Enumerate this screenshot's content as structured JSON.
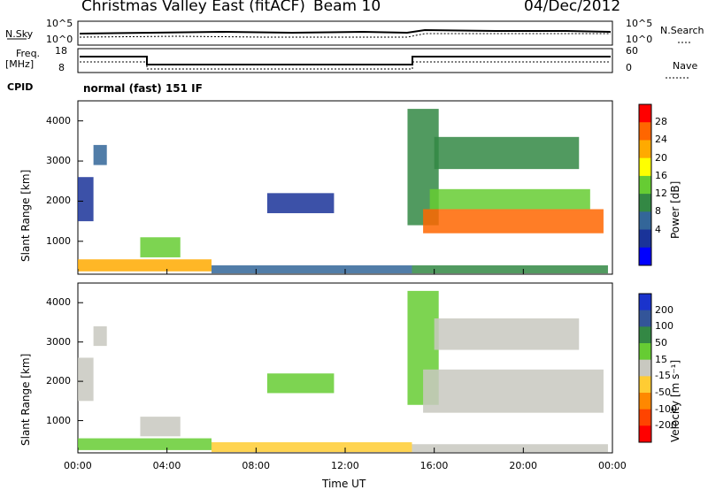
{
  "header": {
    "station": "Christmas Valley East (fitACF)",
    "beam": "Beam 10",
    "date": "04/Dec/2012"
  },
  "top_panels": {
    "nsky_label": "N.Sky",
    "nsearch_label": "N.Search",
    "noise_ticks_left": [
      "10^5",
      "10^0"
    ],
    "noise_ticks_right": [
      "10^5",
      "10^0"
    ],
    "freq_label_line1": "Freq.",
    "freq_label_line2": "[MHz]",
    "freq_ticks": [
      "18",
      "8"
    ],
    "nave_label": "Nave",
    "nave_ticks": [
      "60",
      "0"
    ],
    "cpid_label": "CPID",
    "cpid_text": "normal (fast) 151 IF"
  },
  "axes": {
    "y_label": "Slant Range [km]",
    "y_ticks": [
      "4000",
      "3000",
      "2000",
      "1000"
    ],
    "x_label": "Time UT",
    "x_ticks": [
      "00:00",
      "04:00",
      "08:00",
      "12:00",
      "16:00",
      "20:00",
      "00:00"
    ]
  },
  "power_scale": {
    "label": "Power [dB]",
    "ticks": [
      "28",
      "24",
      "20",
      "16",
      "12",
      "8",
      "4"
    ],
    "colors": [
      "#ff0000",
      "#ff6600",
      "#ffaa00",
      "#ffff00",
      "#66cc33",
      "#338844",
      "#336699",
      "#1a3399",
      "#0000ff"
    ]
  },
  "velocity_scale": {
    "label": "Velocity [m s⁻¹]",
    "ticks": [
      "200",
      "100",
      "50",
      "15",
      "-15",
      "-50",
      "-100",
      "-200"
    ],
    "colors": [
      "#1a33cc",
      "#335599",
      "#338844",
      "#66cc33",
      "#c8c8c0",
      "#ffcc33",
      "#ff8800",
      "#ff4400",
      "#ff0000"
    ]
  },
  "chart_data": {
    "type": "heatmap",
    "title": "Christmas Valley East (fitACF)",
    "xlabel": "Time UT",
    "ylabel": "Slant Range [km]",
    "xlim": [
      0,
      24
    ],
    "ylim": [
      180,
      4500
    ],
    "panels": [
      {
        "name": "Power [dB]",
        "clim": [
          0,
          30
        ],
        "regions": [
          {
            "t": [
              0.0,
              0.7
            ],
            "r": [
              1500,
              2600
            ],
            "value": 6
          },
          {
            "t": [
              0.7,
              1.3
            ],
            "r": [
              2900,
              3400
            ],
            "value": 8
          },
          {
            "t": [
              2.8,
              4.6
            ],
            "r": [
              600,
              1100
            ],
            "value": 14
          },
          {
            "t": [
              0.0,
              6.0
            ],
            "r": [
              250,
              550
            ],
            "value": 22
          },
          {
            "t": [
              8.5,
              11.5
            ],
            "r": [
              1700,
              2200
            ],
            "value": 6
          },
          {
            "t": [
              6.0,
              15.0
            ],
            "r": [
              200,
              400
            ],
            "value": 8
          },
          {
            "t": [
              14.8,
              16.2
            ],
            "r": [
              1400,
              4300
            ],
            "value": 10
          },
          {
            "t": [
              15.5,
              23.6
            ],
            "r": [
              1200,
              1800
            ],
            "value": 26
          },
          {
            "t": [
              15.8,
              23.0
            ],
            "r": [
              1800,
              2300
            ],
            "value": 14
          },
          {
            "t": [
              16.0,
              22.5
            ],
            "r": [
              2800,
              3600
            ],
            "value": 12
          },
          {
            "t": [
              15.0,
              23.8
            ],
            "r": [
              200,
              400
            ],
            "value": 10
          }
        ]
      },
      {
        "name": "Velocity [m s-1]",
        "clim": [
          -200,
          200
        ],
        "regions": [
          {
            "t": [
              0.0,
              0.7
            ],
            "r": [
              1500,
              2600
            ],
            "value": 0
          },
          {
            "t": [
              0.7,
              1.3
            ],
            "r": [
              2900,
              3400
            ],
            "value": 20
          },
          {
            "t": [
              2.8,
              4.6
            ],
            "r": [
              600,
              1100
            ],
            "value": 0
          },
          {
            "t": [
              0.0,
              6.0
            ],
            "r": [
              250,
              550
            ],
            "value": 40
          },
          {
            "t": [
              8.5,
              11.5
            ],
            "r": [
              1700,
              2200
            ],
            "value": 30
          },
          {
            "t": [
              6.0,
              15.0
            ],
            "r": [
              200,
              450
            ],
            "value": -50
          },
          {
            "t": [
              14.8,
              16.2
            ],
            "r": [
              1400,
              4300
            ],
            "value": 30
          },
          {
            "t": [
              15.5,
              23.6
            ],
            "r": [
              1200,
              2300
            ],
            "value": 0
          },
          {
            "t": [
              16.0,
              22.5
            ],
            "r": [
              2800,
              3600
            ],
            "value": 0
          },
          {
            "t": [
              15.0,
              23.8
            ],
            "r": [
              200,
              400
            ],
            "value": 10
          }
        ]
      }
    ]
  }
}
